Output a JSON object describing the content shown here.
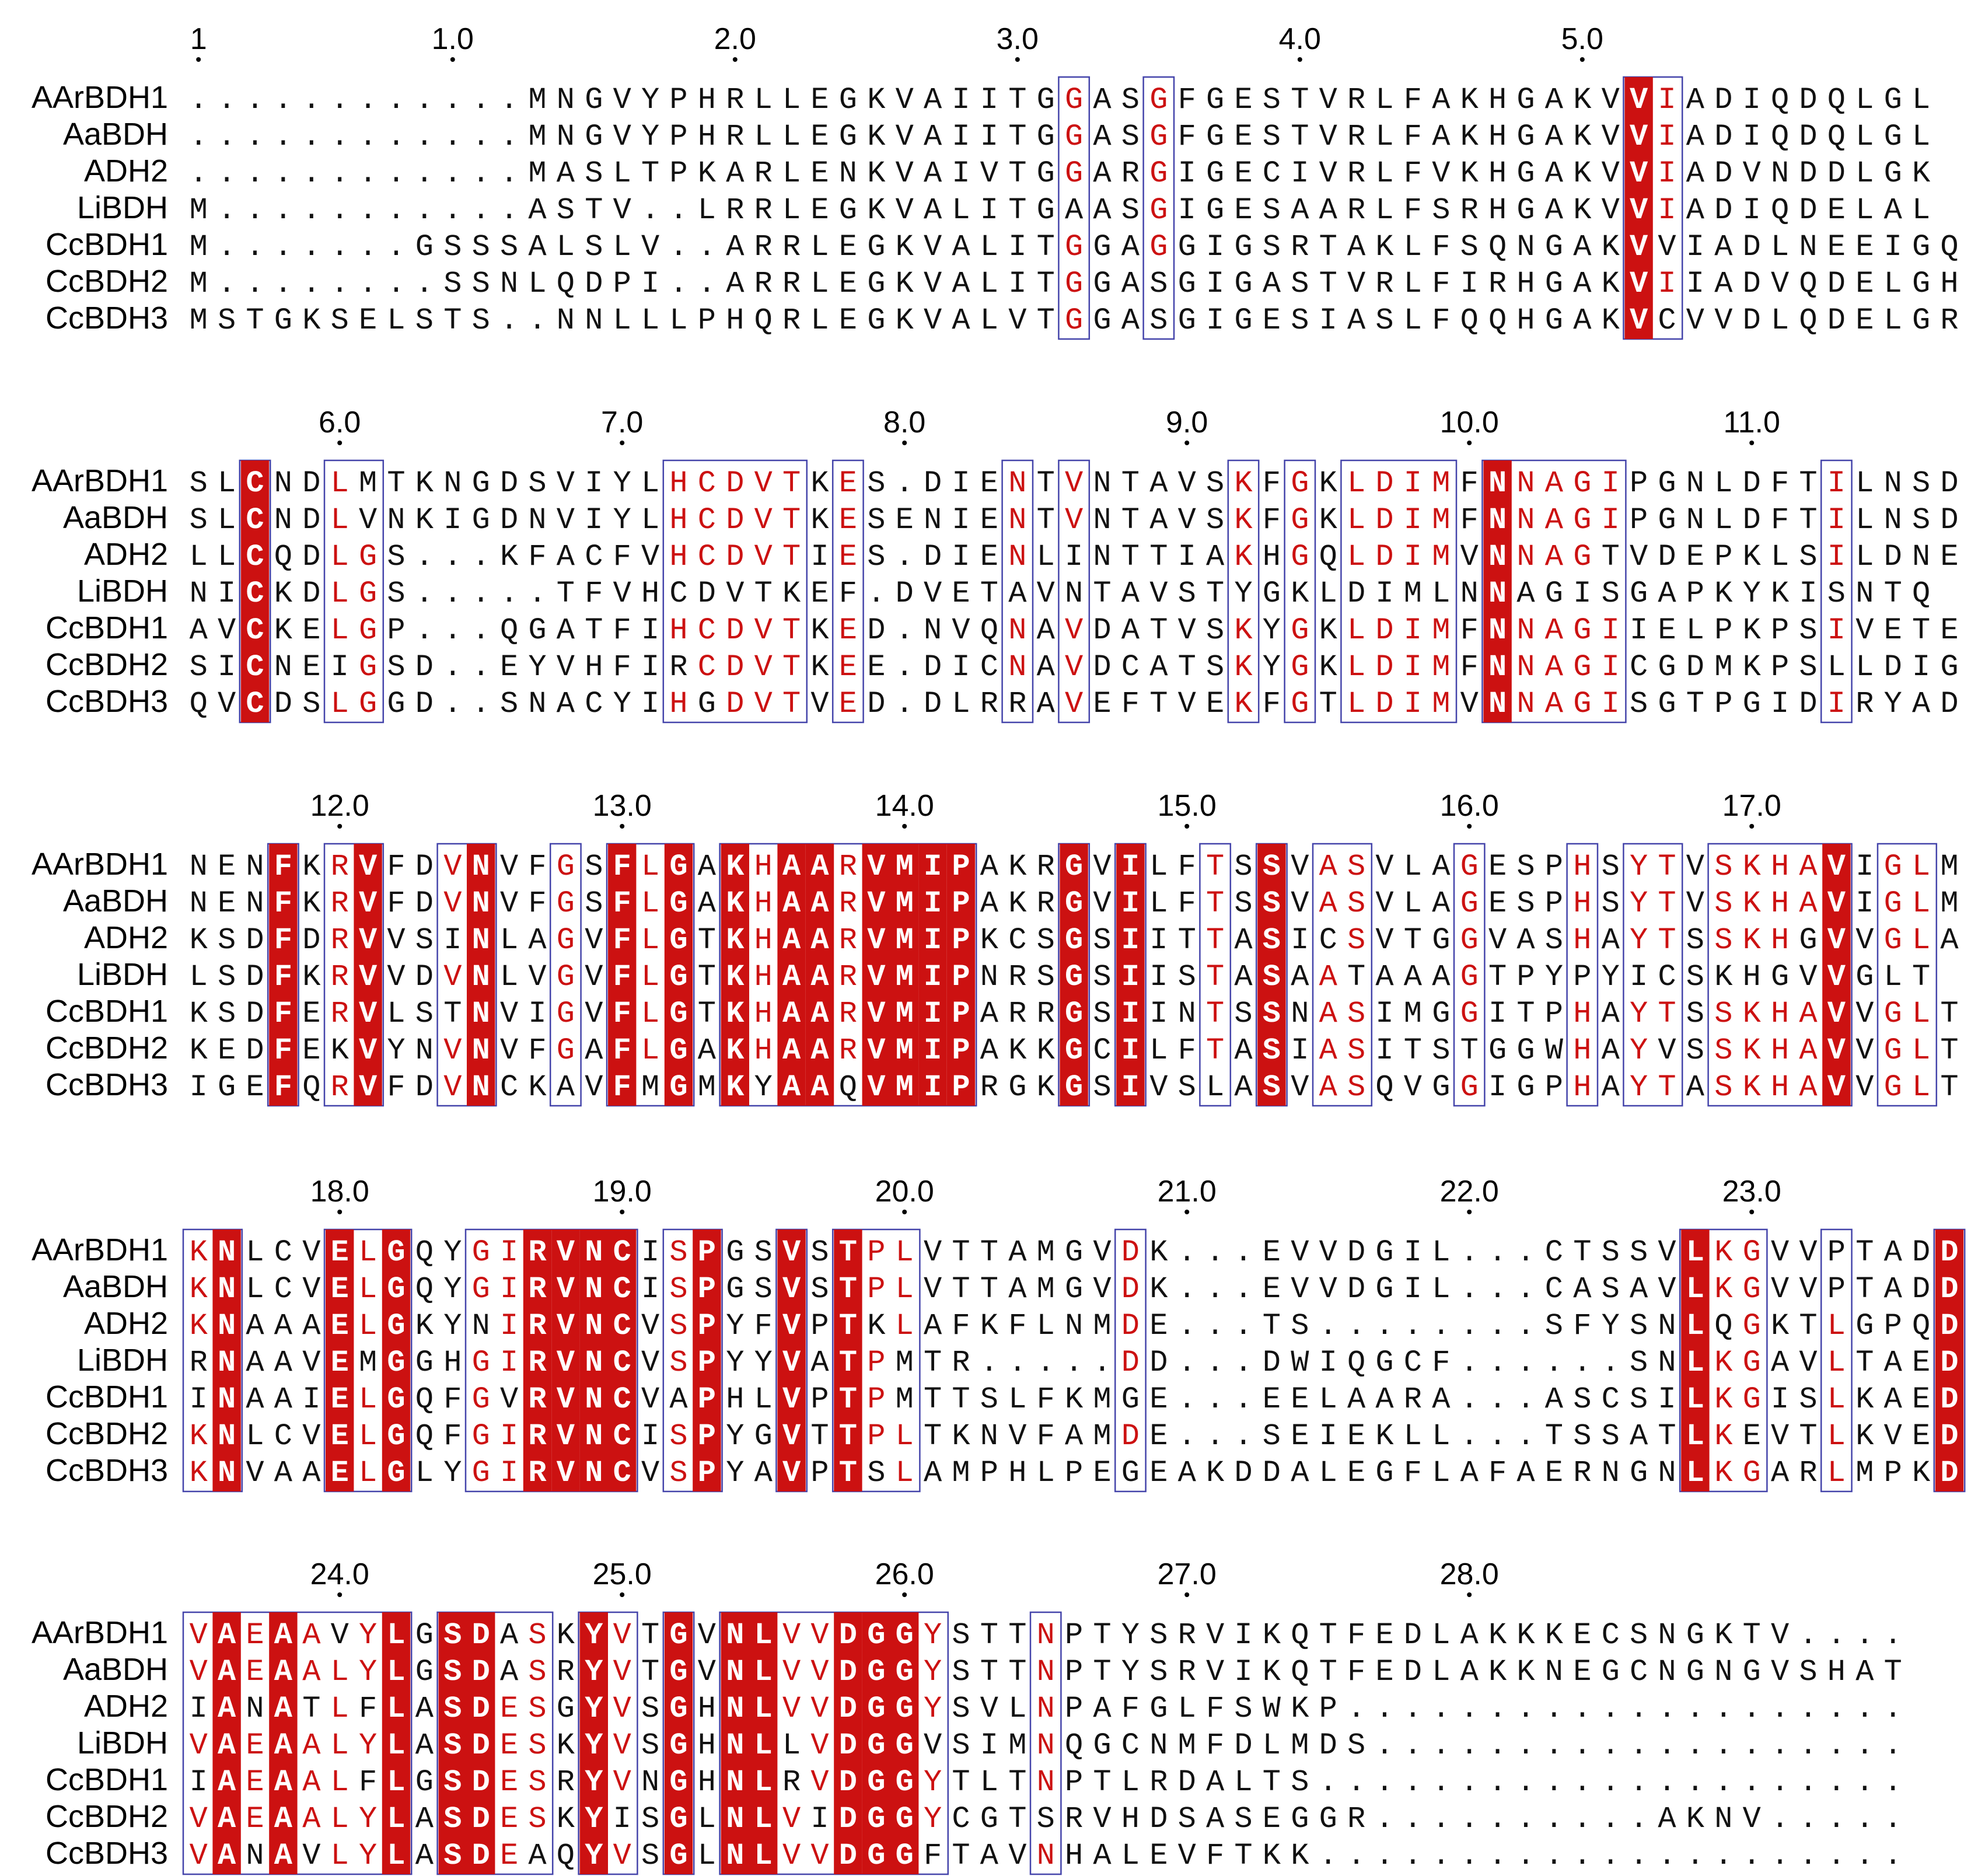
{
  "colors": {
    "identity_fill": "#cc1111",
    "identity_text": "#ffffff",
    "similar_text": "#cc1111",
    "plain_text": "#111111",
    "box_border": "#4444aa"
  },
  "blocks": [
    {
      "numbers": [
        "1",
        "1.0",
        "2.0",
        "3.0",
        "4.0",
        "5.0"
      ],
      "names": [
        "AArBDH1",
        "AaBDH",
        "ADH2",
        "LiBDH",
        "CcBDH1",
        "CcBDH2",
        "CcBDH3"
      ],
      "seqs": [
        "............MNGVYPHRLLEGKVAIITGGASGFGESTVRLFAKHGAKVVIADIQDQLGL",
        "............MNGVYPHRLLEGKVAIITGGASGFGESTVRLFAKHGAKVVIADIQDQLGL",
        "............MASLTPKARLENKVAIVTGGARGIGECIVRLFVKHGAKVVIADVNDDLGK",
        "M...........ASTV..LRRLEGKVALITGAASGIGESAARLFSRHGAKVVIADIQDELAL",
        "M.......GSSSALSLV..ARRLEGKVALITGGAGGIGSRTAKLFSQNGAKVVIADLNEEIGQ",
        "M........SSNLQDPI..ARRLEGKVALITGGASGIGASTVRLFIRHGAKVIIADVQDELGH",
        "MSTGKSELSTS..NNLLLPHQRLEGKVALVTGGASGIGESIASLFQQHGAKVCVVDLQDELGR"
      ]
    },
    {
      "numbers": [
        "6.0",
        "7.0",
        "8.0",
        "9.0",
        "10.0",
        "11.0"
      ],
      "names": [
        "AArBDH1",
        "AaBDH",
        "ADH2",
        "LiBDH",
        "CcBDH1",
        "CcBDH2",
        "CcBDH3"
      ],
      "seqs": [
        "SLCNDLMTKNGDSVIYLHCDVTKES.DIENTVNTAVSKFGKLDIMFNNAGIPGNLDFTILNSD",
        "SLCNDLVNKIGDNVIYLHCDVTKESENIENTVNTAVSKFGKLDIMFNNAGIPGNLDFTILNSD",
        "LLCQDLGS...KFACFVHCDVTIES.DIENLINTTIAKHGQLDIMVNNAGTVDEPKLSILDNE",
        "NICKDLGS.....TFVHCDVTKEF.DVETAVNTAVSTYGKLDIMLNNAGISGAPKYKISNTQ",
        "AVCKELGP...QGATFIHCDVTKED.NVQNAVDATVSKYGKLDIMFNNAGIIELPKPSIVETE",
        "SICNEIGSD..EYVHFIRCDVTKEE.DICNAVDCATSKYGKLDIMFNNAGICGDMKPSLLDIG",
        "QVCDSLGGD..SNACYIHGDVTVED.DLRRAVEFTVEKFGTLDIMVNNAGISGTPGIDIRYAD"
      ]
    },
    {
      "numbers": [
        "12.0",
        "13.0",
        "14.0",
        "15.0",
        "16.0",
        "17.0"
      ],
      "names": [
        "AArBDH1",
        "AaBDH",
        "ADH2",
        "LiBDH",
        "CcBDH1",
        "CcBDH2",
        "CcBDH3"
      ],
      "seqs": [
        "NENFKRVFDVNVFGSFLGAKHAARVMIPAKRGVILFTSSVASVLAGESPHSYTVSKHAVIGLM",
        "NENFKRVFDVNVFGSFLGAKHAARVMIPAKRGVILFTSSVASVLAGESPHSYTVSKHAVIGLM",
        "KSDFDRVVSINLAGVFLGTKHAARVMIPKCSGSIITTASICSVTGGVASHAYTSSKHGVVGLA",
        "LSDFKRVVDVNLVGVFLGTKHAARVMIPNRSGSIISTASAATAAAGTPYPYICSKHGVVGLT",
        "KSDFERVLSTNVIGVFLGTKHAARVMIPARRGSIINTSSNASIMGGITPHAYTSSKHAVVGLT",
        "KEDFEKVYNVNVFGAFLGAKHAARVMIPAKKGCILFTASIASITSTGGWHAYVSSKHAVVGLT",
        "IGEFQRVFDVNCKAVFMGMKYAAQVMIPRGKGSIVSLASVASQVGGIGPHAYTASKHAVVGLT"
      ]
    },
    {
      "numbers": [
        "18.0",
        "19.0",
        "20.0",
        "21.0",
        "22.0",
        "23.0"
      ],
      "names": [
        "AArBDH1",
        "AaBDH",
        "ADH2",
        "LiBDH",
        "CcBDH1",
        "CcBDH2",
        "CcBDH3"
      ],
      "seqs": [
        "KNLCVELGQYGIRVNCISPGSVSTPLVTTAMGVDK...EVVDGIL...CTSSVLKGVVPTADD",
        "KNLCVELGQYGIRVNCISPGSVSTPLVTTAMGVDK...EVVDGIL...CASAVLKGVVPTADD",
        "KNAAAELGKYNIRVNCVSPYFVPTKLAFKFLNMDE...TS........SFYSNLQGKTLGPQD",
        "RNAAVEMGGHGIRVNCVSPYYVATPMTR.....DD...DWIQGCF......SNLKGAVLTAED",
        "INAAIELGQFGVRVNCVAPHLVPTPMTTSLFKMGE...EELAARA...ASCSILKGISLKAED",
        "KNLCVELGQFGIRVNCISPYGVTTPLTKNVFAMDE...SEIEKLL...TSSATLKEVTLKVED",
        "KNVAAELGLYGIRVNCVSPYAVPTSLAMPHLPEGEAKDDALEGFLAFAERNGNLKGARLMPKD"
      ]
    },
    {
      "numbers": [
        "24.0",
        "25.0",
        "26.0",
        "27.0",
        "28.0"
      ],
      "names": [
        "AArBDH1",
        "AaBDH",
        "ADH2",
        "LiBDH",
        "CcBDH1",
        "CcBDH2",
        "CcBDH3"
      ],
      "seqs": [
        "VAEAAVYLGSDASKYVTGVNLVVDGGYSTTNPTYSRVIKQTFEDLAKKKECSNGKTV....",
        "VAEAALYLGSDASRYVTGVNLVVDGGYSTTNPTYSRVIKQTFEDLAKKNEGCNGNGVSHAT",
        "IANATLFLASDESGYVSGHNLVVDGGYSVLNPAFGLFSWKP....................",
        "VAEAALYLASDESKYVSGHNLLVDGGVSIMNQGCNMFDLMDS...................",
        "IAEAALFLGSDESRYVNGHNLRVDGGYTLTNPTLRDALTS.....................",
        "VAEAALYLASDESKYISGLNLVIDGGYCGTSRVHDSASEGGR..........AKNV.....",
        "VANAVLYLASDEAQYVSGLNLVVDGGFTAVNHALEVFTKK....................."
      ]
    }
  ]
}
